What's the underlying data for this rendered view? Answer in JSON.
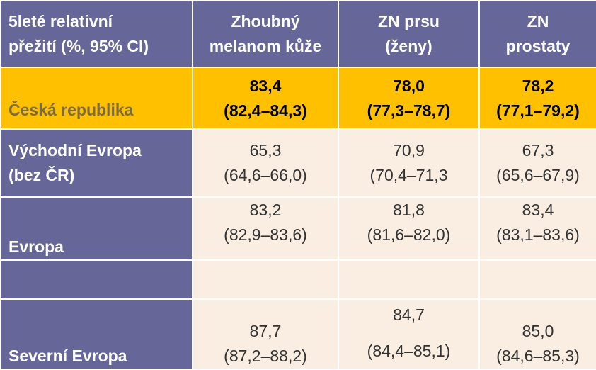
{
  "header": {
    "row_label": [
      "5leté relativní",
      "přežití (%, 95% CI)"
    ],
    "columns": [
      [
        "Zhoubný",
        "melanom kůže"
      ],
      [
        "ZN prsu",
        "(ženy)"
      ],
      [
        "ZN",
        "prostaty"
      ]
    ]
  },
  "rows": [
    {
      "label": [
        "Česká republika"
      ],
      "cells": [
        [
          "83,4",
          "(82,4–84,3)"
        ],
        [
          "78,0",
          "(77,3–78,7)"
        ],
        [
          "78,2",
          "(77,1–79,2)"
        ]
      ]
    },
    {
      "label": [
        "Východní Evropa",
        "(bez ČR)"
      ],
      "cells": [
        [
          "65,3",
          "(64,6–66,0)"
        ],
        [
          "70,9",
          "(70,4–71,3"
        ],
        [
          "67,3",
          "(65,6–67,9)"
        ]
      ]
    },
    {
      "label": [
        "Evropa"
      ],
      "cells": [
        [
          "83,2",
          "(82,9–83,6)"
        ],
        [
          "81,8",
          "(81,6–82,0)"
        ],
        [
          "83,4",
          "(83,1–83,6)"
        ]
      ]
    },
    {
      "label": [
        ""
      ],
      "cells": [
        [
          ""
        ],
        [
          ""
        ],
        [
          ""
        ]
      ]
    },
    {
      "label": [
        "Severní Evropa"
      ],
      "cells": [
        [
          "87,7",
          "(87,2–88,2)"
        ],
        [
          "84,7",
          "(84,4–85,1)"
        ],
        [
          "85,0",
          "(84,6–85,3)"
        ]
      ]
    }
  ],
  "colors": {
    "header_bg": "#666698",
    "highlight_bg": "#ffc000",
    "cell_bg": "#faeee2",
    "highlight_label_text": "#7f6a3a"
  }
}
